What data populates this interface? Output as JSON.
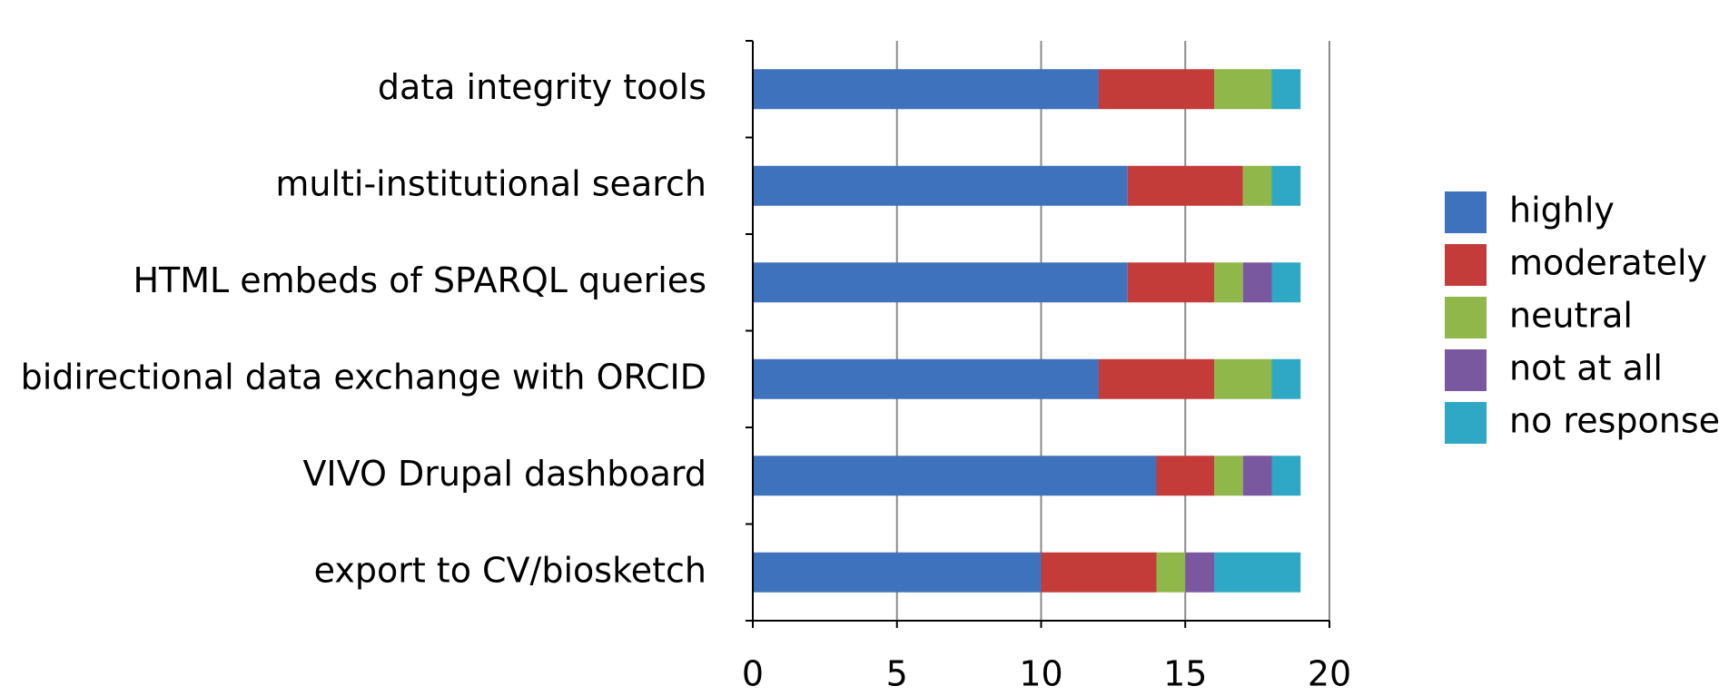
{
  "chart_data": {
    "type": "stacked-barh",
    "categories": [
      "data integrity tools",
      "multi-institutional search",
      "HTML embeds of SPARQL queries",
      "bidirectional data exchange with ORCID",
      "VIVO Drupal dashboard",
      "export to CV/biosketch"
    ],
    "series": [
      {
        "name": "highly",
        "color": "#3f72bd",
        "values": [
          12,
          13,
          13,
          12,
          14,
          10
        ]
      },
      {
        "name": "moderately",
        "color": "#c43c39",
        "values": [
          4,
          4,
          3,
          4,
          2,
          4
        ]
      },
      {
        "name": "neutral",
        "color": "#8fb74a",
        "values": [
          2,
          1,
          1,
          2,
          1,
          1
        ]
      },
      {
        "name": "not at all",
        "color": "#7a58a0",
        "values": [
          0,
          0,
          1,
          0,
          1,
          1
        ]
      },
      {
        "name": "no response",
        "color": "#2ea8c4",
        "values": [
          1,
          1,
          1,
          1,
          1,
          3
        ]
      }
    ],
    "xlim": [
      0,
      20
    ],
    "xticks": [
      0,
      5,
      10,
      15,
      20
    ],
    "grid": true,
    "legend": "right"
  }
}
